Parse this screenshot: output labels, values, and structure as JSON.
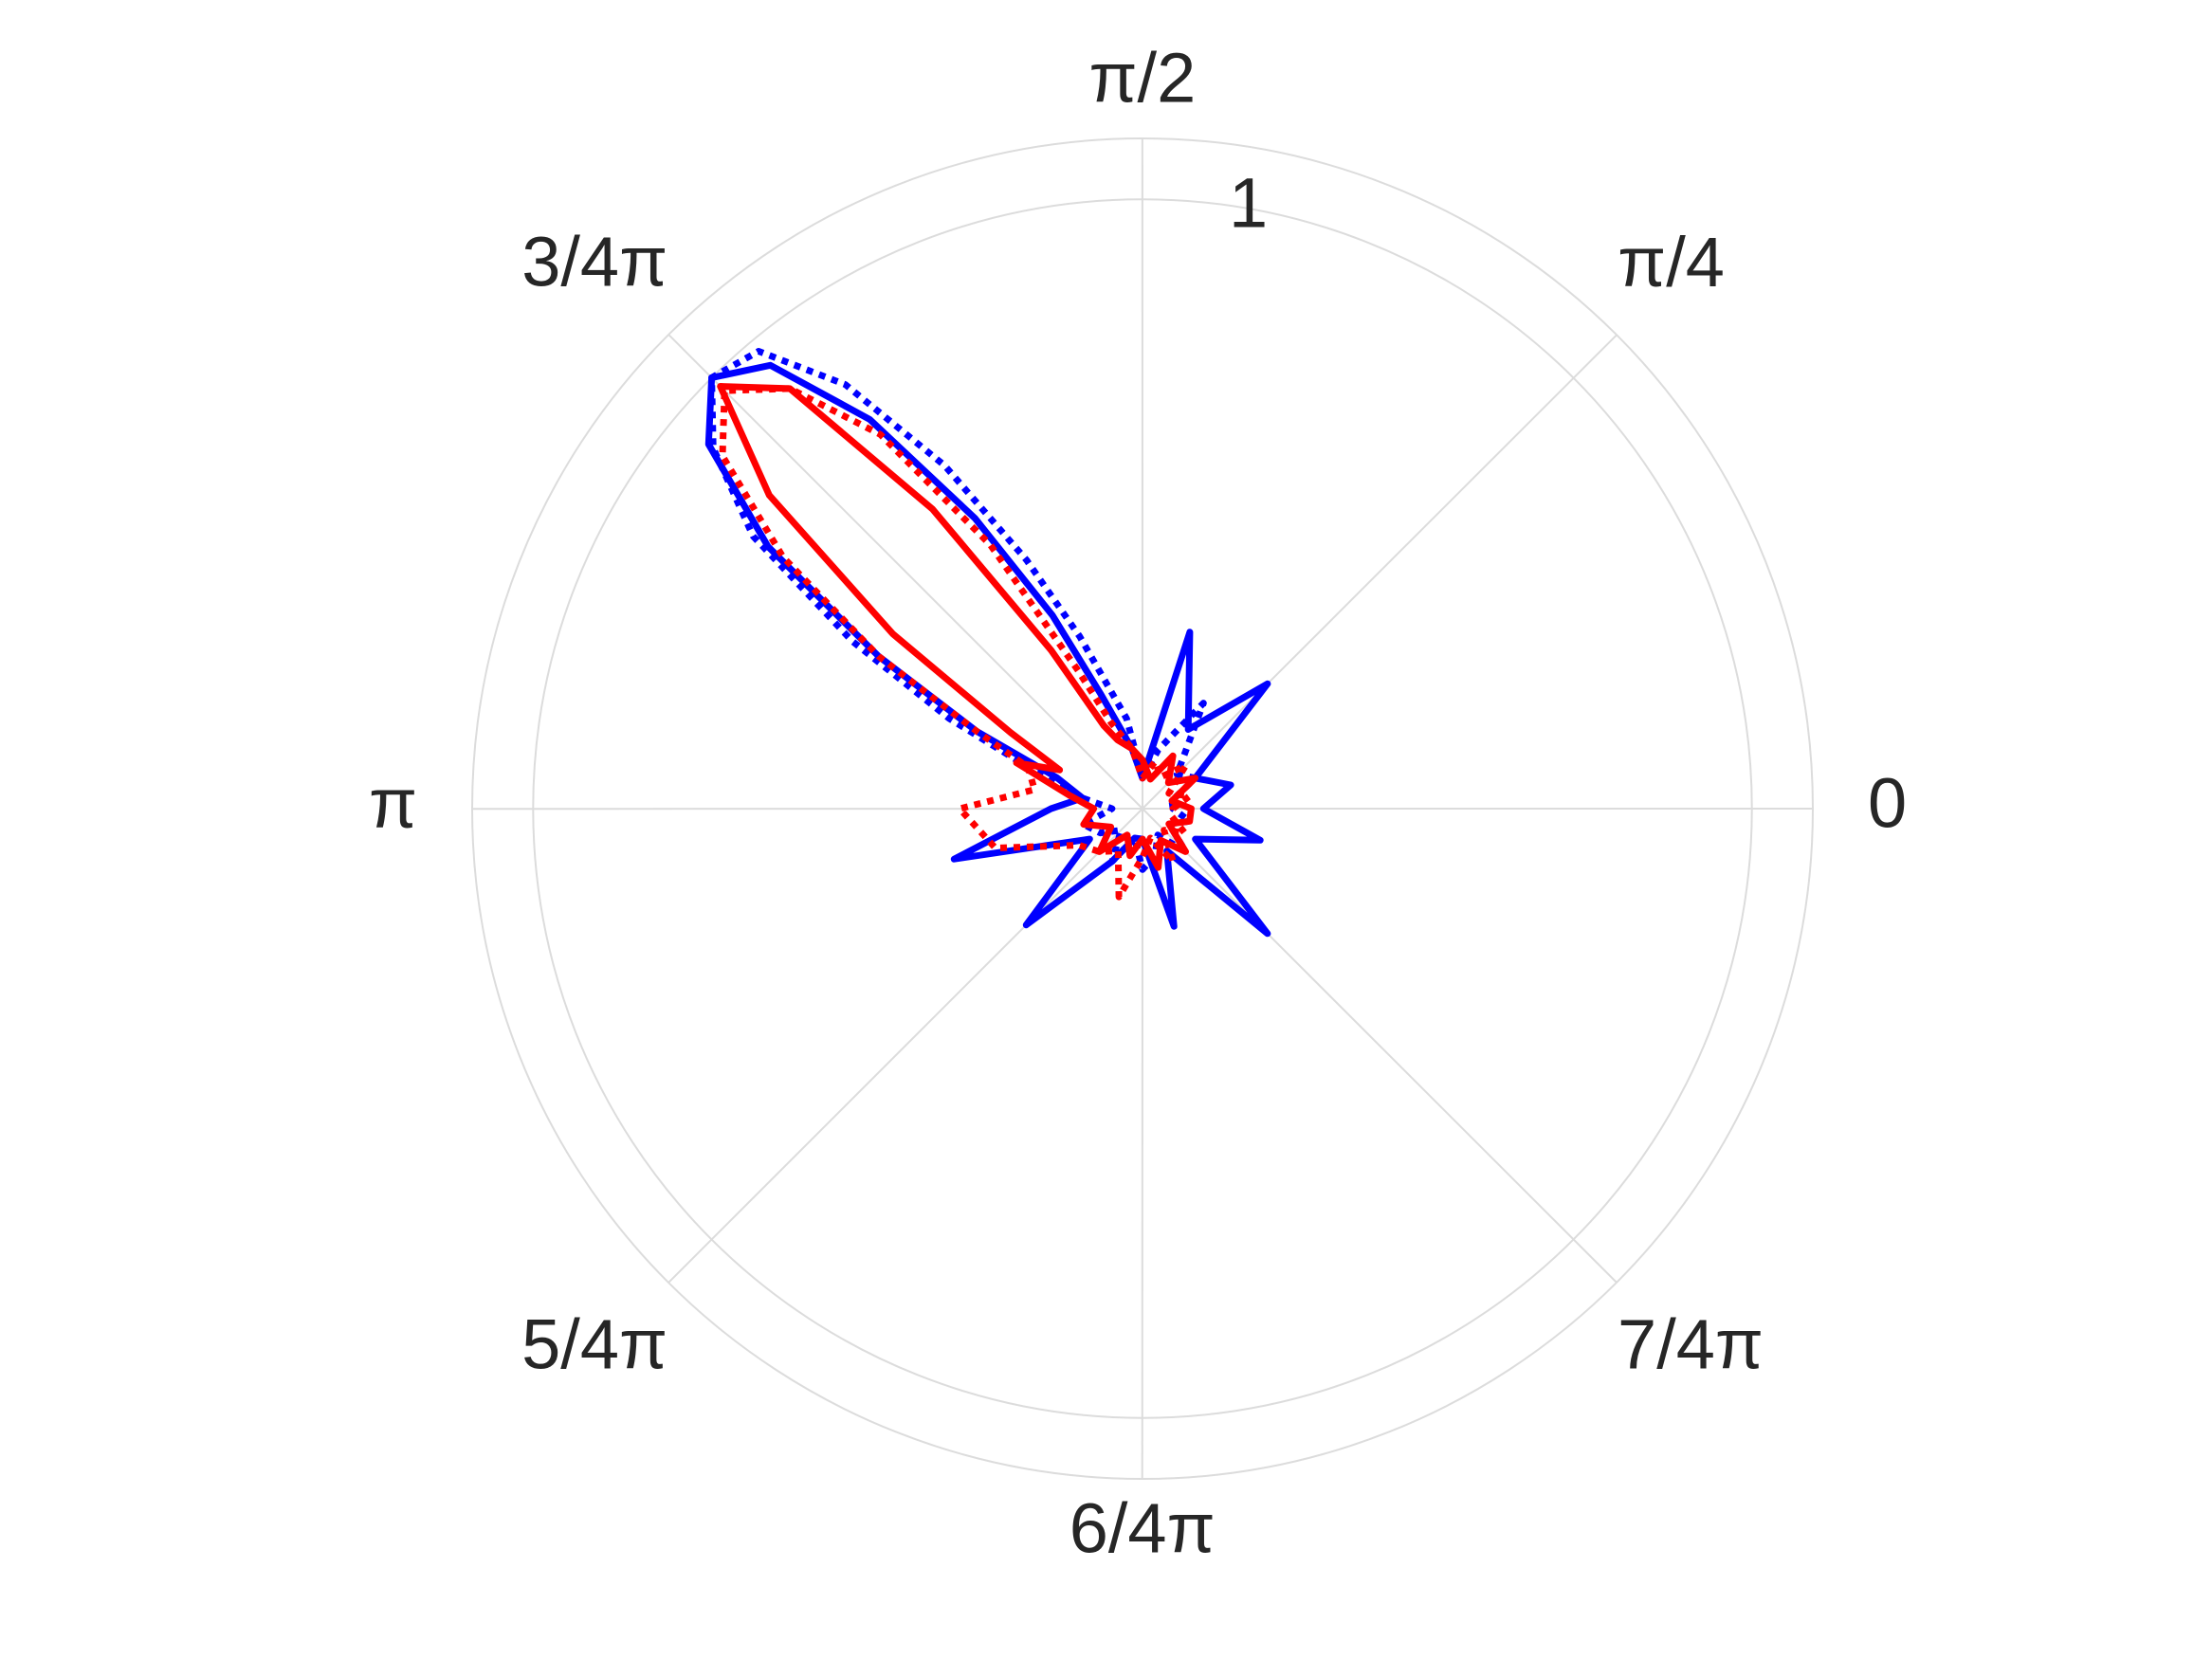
{
  "chart_data": {
    "type": "polar",
    "theta": [
      0,
      0.262,
      0.524,
      0.785,
      1.047,
      1.309,
      1.571,
      1.745,
      1.92,
      2.007,
      2.094,
      2.182,
      2.269,
      2.356,
      2.443,
      2.531,
      2.618,
      2.705,
      2.793,
      2.967,
      3.142,
      3.403,
      3.665,
      3.927,
      4.189,
      4.451,
      4.712,
      4.974,
      5.236,
      5.498,
      5.76,
      6.021
    ],
    "series": [
      {
        "color": "#0000ff",
        "linestyle": "solid",
        "values": [
          0.1,
          0.15,
          0.1,
          0.29,
          0.15,
          0.3,
          0.05,
          0.1,
          0.2,
          0.35,
          0.55,
          0.78,
          0.95,
          1.0,
          0.93,
          0.75,
          0.5,
          0.3,
          0.15,
          0.1,
          0.15,
          0.32,
          0.1,
          0.27,
          0.1,
          0.05,
          0.05,
          0.2,
          0.08,
          0.29,
          0.1,
          0.2
        ]
      },
      {
        "color": "#0000ff",
        "linestyle": "dotted",
        "values": [
          0.05,
          0.05,
          0.1,
          0.08,
          0.2,
          0.1,
          0.05,
          0.15,
          0.3,
          0.45,
          0.65,
          0.85,
          0.98,
          1.0,
          0.92,
          0.78,
          0.55,
          0.35,
          0.2,
          0.1,
          0.05,
          0.1,
          0.08,
          0.05,
          0.1,
          0.05,
          0.1,
          0.08,
          0.05,
          0.1,
          0.05,
          0.08
        ]
      },
      {
        "color": "#ff0000",
        "linestyle": "solid",
        "values": [
          0.08,
          0.05,
          0.1,
          0.06,
          0.1,
          0.05,
          0.08,
          0.1,
          0.12,
          0.15,
          0.3,
          0.6,
          0.9,
          0.98,
          0.8,
          0.5,
          0.25,
          0.15,
          0.22,
          0.12,
          0.08,
          0.1,
          0.06,
          0.1,
          0.05,
          0.08,
          0.05,
          0.1,
          0.06,
          0.1,
          0.05,
          0.08
        ]
      },
      {
        "color": "#ff0000",
        "linestyle": "dotted",
        "values": [
          0.05,
          0.08,
          0.05,
          0.1,
          0.06,
          0.08,
          0.05,
          0.1,
          0.15,
          0.25,
          0.5,
          0.75,
          0.9,
          0.97,
          0.9,
          0.72,
          0.5,
          0.3,
          0.2,
          0.18,
          0.3,
          0.25,
          0.12,
          0.1,
          0.08,
          0.15,
          0.08,
          0.05,
          0.1,
          0.05,
          0.08,
          0.05
        ]
      }
    ],
    "rlim": [
      0,
      1.1
    ],
    "rticks": [
      1
    ],
    "thetaticks": [
      {
        "value": 0,
        "label": "0"
      },
      {
        "value": 0.785,
        "label": "π/4"
      },
      {
        "value": 1.571,
        "label": "π/2"
      },
      {
        "value": 2.356,
        "label": "3/4π"
      },
      {
        "value": 3.142,
        "label": "π"
      },
      {
        "value": 3.927,
        "label": "5/4π"
      },
      {
        "value": 4.712,
        "label": "6/4π"
      },
      {
        "value": 5.498,
        "label": "7/4π"
      }
    ],
    "grid": true
  }
}
